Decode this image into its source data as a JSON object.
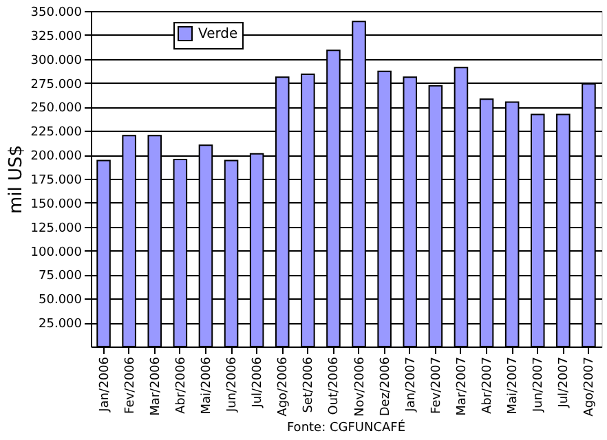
{
  "chart_data": {
    "type": "bar",
    "ylabel": "mil US$",
    "categories": [
      "Jan/2006",
      "Fev/2006",
      "Mar/2006",
      "Abr/2006",
      "Mai/2006",
      "Jun/2006",
      "Jul/2006",
      "Ago/2006",
      "Set/2006",
      "Out/2006",
      "Nov/2006",
      "Dez/2006",
      "Jan/2007",
      "Fev/2007",
      "Mar/2007",
      "Abr/2007",
      "Mai/2007",
      "Jun/2007",
      "Jul/2007",
      "Ago/2007"
    ],
    "series": [
      {
        "name": "Verde",
        "color": "#9999ff",
        "values": [
          194000,
          220000,
          220000,
          195000,
          210000,
          194000,
          201000,
          281000,
          284000,
          309000,
          339000,
          287000,
          281000,
          272000,
          291000,
          258000,
          255000,
          242000,
          242000,
          274000
        ]
      }
    ],
    "ylim": [
      0,
      350000
    ],
    "yticks": [
      {
        "value": 25000,
        "label": "25.000"
      },
      {
        "value": 50000,
        "label": "50.000"
      },
      {
        "value": 75000,
        "label": "75.000"
      },
      {
        "value": 100000,
        "label": "100.000"
      },
      {
        "value": 125000,
        "label": "125.000"
      },
      {
        "value": 150000,
        "label": "150.000"
      },
      {
        "value": 175000,
        "label": "175.000"
      },
      {
        "value": 200000,
        "label": "200.000"
      },
      {
        "value": 225000,
        "label": "225.000"
      },
      {
        "value": 250000,
        "label": "250.000"
      },
      {
        "value": 275000,
        "label": "275.000"
      },
      {
        "value": 300000,
        "label": "300.000"
      },
      {
        "value": 325000,
        "label": "325.000"
      },
      {
        "value": 350000,
        "label": "350.000"
      }
    ],
    "grid": "y",
    "legend": "top left",
    "annotations": [
      "Fonte: CGFUNCAFÉ"
    ]
  }
}
